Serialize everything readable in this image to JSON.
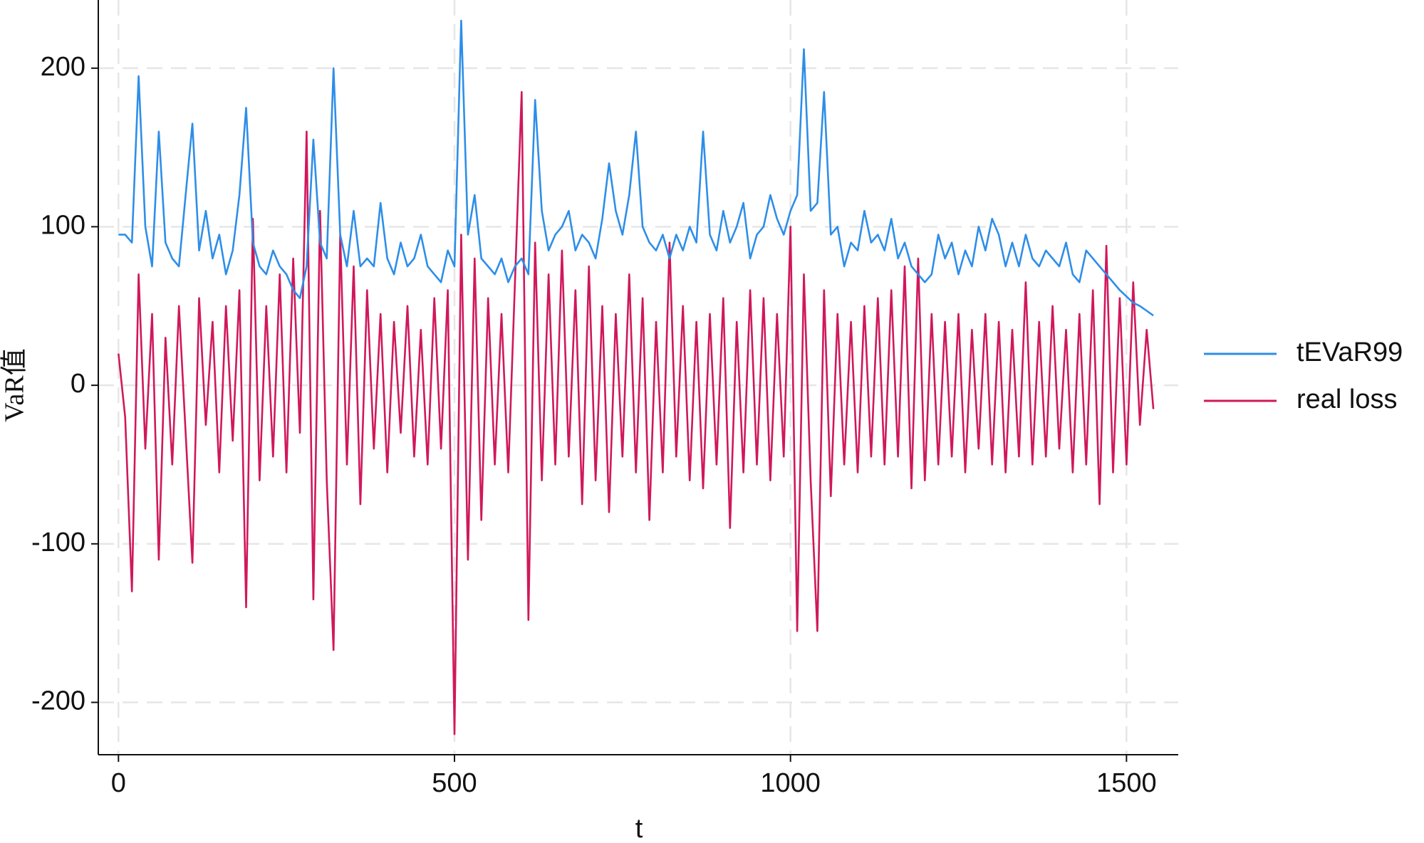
{
  "chart_data": {
    "type": "line",
    "x_label": "t",
    "y_label": "VaR值",
    "x": [
      0,
      10,
      20,
      30,
      40,
      50,
      60,
      70,
      80,
      90,
      100,
      110,
      120,
      130,
      140,
      150,
      160,
      170,
      180,
      190,
      200,
      210,
      220,
      230,
      240,
      250,
      260,
      270,
      280,
      290,
      300,
      310,
      320,
      330,
      340,
      350,
      360,
      370,
      380,
      390,
      400,
      410,
      420,
      430,
      440,
      450,
      460,
      470,
      480,
      490,
      500,
      510,
      520,
      530,
      540,
      550,
      560,
      570,
      580,
      590,
      600,
      610,
      620,
      630,
      640,
      650,
      660,
      670,
      680,
      690,
      700,
      710,
      720,
      730,
      740,
      750,
      760,
      770,
      780,
      790,
      800,
      810,
      820,
      830,
      840,
      850,
      860,
      870,
      880,
      890,
      900,
      910,
      920,
      930,
      940,
      950,
      960,
      970,
      980,
      990,
      1000,
      1010,
      1020,
      1030,
      1040,
      1050,
      1060,
      1070,
      1080,
      1090,
      1100,
      1110,
      1120,
      1130,
      1140,
      1150,
      1160,
      1170,
      1180,
      1190,
      1200,
      1210,
      1220,
      1230,
      1240,
      1250,
      1260,
      1270,
      1280,
      1290,
      1300,
      1310,
      1320,
      1330,
      1340,
      1350,
      1360,
      1370,
      1380,
      1390,
      1400,
      1410,
      1420,
      1430,
      1440,
      1450,
      1460,
      1470,
      1480,
      1490,
      1500,
      1510,
      1520,
      1530,
      1540
    ],
    "series": [
      {
        "name": "tEVaR99",
        "color": "#2e8ee8",
        "values": [
          95,
          95,
          90,
          195,
          100,
          75,
          160,
          90,
          80,
          75,
          120,
          165,
          85,
          110,
          80,
          95,
          70,
          85,
          120,
          175,
          90,
          75,
          70,
          85,
          75,
          70,
          60,
          55,
          75,
          155,
          90,
          80,
          200,
          95,
          75,
          110,
          75,
          80,
          75,
          115,
          80,
          70,
          90,
          75,
          80,
          95,
          75,
          70,
          65,
          85,
          75,
          230,
          95,
          120,
          80,
          75,
          70,
          80,
          65,
          75,
          80,
          70,
          180,
          110,
          85,
          95,
          100,
          110,
          85,
          95,
          90,
          80,
          105,
          140,
          110,
          95,
          120,
          160,
          100,
          90,
          85,
          95,
          80,
          95,
          85,
          100,
          90,
          160,
          95,
          85,
          110,
          90,
          100,
          115,
          80,
          95,
          100,
          120,
          105,
          95,
          110,
          120,
          212,
          110,
          115,
          185,
          95,
          100,
          75,
          90,
          85,
          110,
          90,
          95,
          85,
          105,
          80,
          90,
          75,
          70,
          65,
          70,
          95,
          80,
          90,
          70,
          85,
          75,
          100,
          85,
          105,
          95,
          75,
          90,
          75,
          95,
          80,
          75,
          85,
          80,
          75,
          90,
          70,
          65,
          85,
          80,
          75,
          70,
          65,
          60,
          56,
          52,
          50,
          47,
          44
        ]
      },
      {
        "name": "real loss",
        "color": "#d0185a",
        "values": [
          20,
          -20,
          -130,
          70,
          -40,
          45,
          -110,
          30,
          -50,
          50,
          -30,
          -112,
          55,
          -25,
          40,
          -55,
          50,
          -35,
          60,
          -140,
          105,
          -60,
          50,
          -45,
          70,
          -55,
          80,
          -30,
          160,
          -135,
          110,
          -60,
          -167,
          95,
          -50,
          75,
          -75,
          60,
          -40,
          45,
          -55,
          40,
          -30,
          50,
          -45,
          35,
          -50,
          55,
          -40,
          60,
          -220,
          95,
          -110,
          80,
          -85,
          55,
          -50,
          45,
          -55,
          65,
          185,
          -148,
          90,
          -60,
          70,
          -50,
          85,
          -45,
          60,
          -75,
          75,
          -60,
          50,
          -80,
          45,
          -45,
          70,
          -55,
          55,
          -85,
          40,
          -55,
          90,
          -45,
          50,
          -60,
          40,
          -65,
          45,
          -50,
          55,
          -90,
          40,
          -55,
          60,
          -50,
          55,
          -60,
          45,
          -45,
          100,
          -155,
          70,
          -60,
          -155,
          60,
          -70,
          45,
          -50,
          40,
          -55,
          50,
          -45,
          55,
          -50,
          60,
          -45,
          75,
          -65,
          80,
          -60,
          45,
          -50,
          40,
          -45,
          45,
          -55,
          35,
          -40,
          45,
          -50,
          40,
          -55,
          35,
          -45,
          65,
          -50,
          40,
          -45,
          50,
          -40,
          35,
          -55,
          45,
          -50,
          60,
          -75,
          88,
          -55,
          55,
          -50,
          65,
          -25,
          35,
          -15
        ]
      }
    ],
    "xlim": [
      -30,
      1577
    ],
    "ylim": [
      -233,
      243
    ],
    "xticks": [
      0,
      500,
      1000,
      1500
    ],
    "yticks": [
      -200,
      -100,
      0,
      100,
      200
    ],
    "grid": true,
    "legend": "right"
  }
}
